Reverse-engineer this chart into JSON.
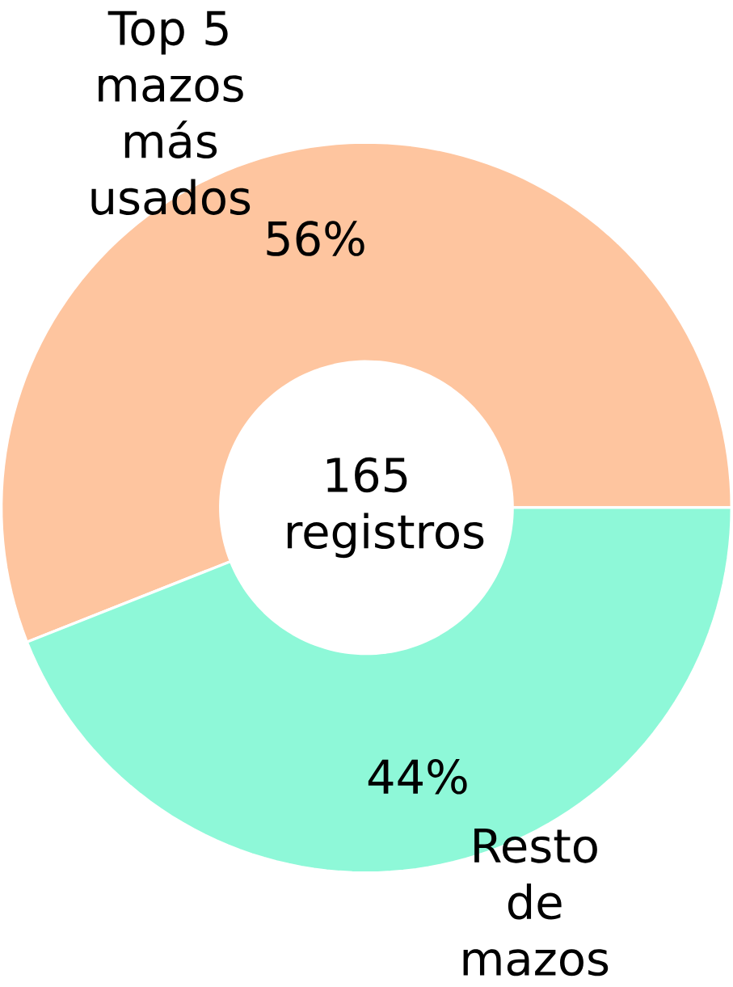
{
  "chart_data": {
    "type": "donut",
    "categories": [
      "Top 5 mazos más usados",
      "Resto de mazos"
    ],
    "values": [
      56,
      44
    ],
    "colors": [
      "#fec59f",
      "#8ef8d8"
    ],
    "value_labels": [
      "56%",
      "44%"
    ],
    "annotations": [
      "165 registros"
    ]
  }
}
